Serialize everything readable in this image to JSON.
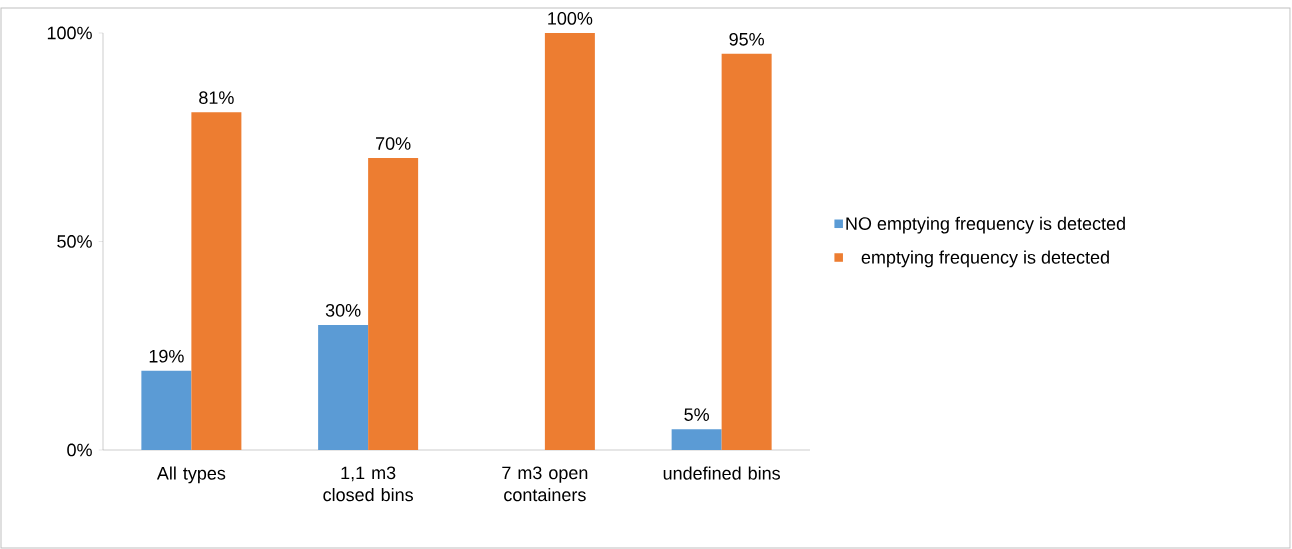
{
  "chart_data": {
    "type": "bar",
    "categories": [
      "All types",
      "1,1 m3 closed bins",
      "7 m3 open containers",
      "undefined bins"
    ],
    "series": [
      {
        "name": "NO emptying frequency is detected",
        "color": "#5b9bd5",
        "values": [
          19,
          30,
          0,
          5
        ],
        "value_labels": [
          "19%",
          "30%",
          null,
          "5%"
        ]
      },
      {
        "name": "emptying frequency is detected",
        "color": "#ed7d31",
        "values": [
          81,
          70,
          100,
          95
        ],
        "value_labels": [
          "81%",
          "70%",
          "100%",
          "95%"
        ]
      }
    ],
    "ylim": [
      0,
      100
    ],
    "yticks": [
      {
        "value": 0,
        "label": "0%"
      },
      {
        "value": 50,
        "label": "50%"
      },
      {
        "value": 100,
        "label": "100%"
      }
    ],
    "grid": false,
    "legend": "right"
  }
}
